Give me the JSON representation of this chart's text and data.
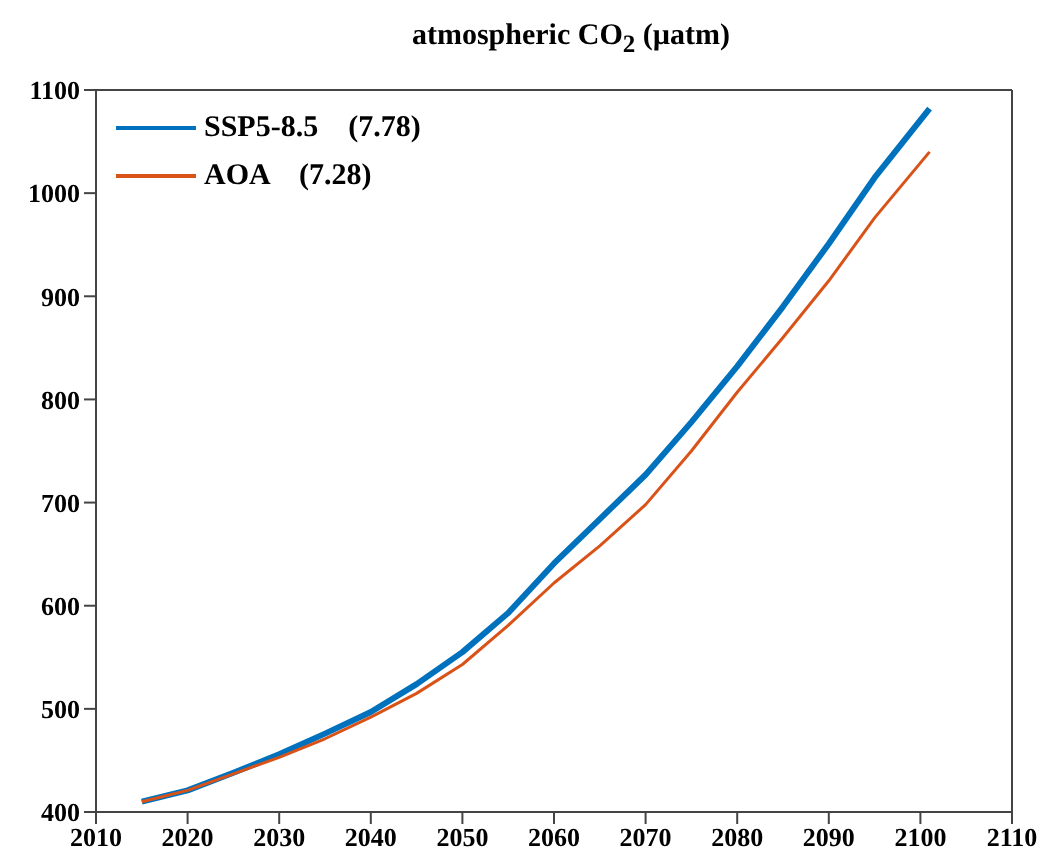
{
  "chart_data": {
    "type": "line",
    "title": "atmospheric CO$_{2}$ (µatm)",
    "x": [
      2015,
      2020,
      2025,
      2030,
      2035,
      2040,
      2045,
      2050,
      2055,
      2060,
      2065,
      2070,
      2075,
      2080,
      2085,
      2090,
      2095,
      2101
    ],
    "series": [
      {
        "name": "SSP5-8.5    (7.78)",
        "color": "#0072bd",
        "values": [
          410,
          421,
          438,
          456,
          476,
          497,
          524,
          555,
          593,
          641,
          684,
          727,
          778,
          832,
          890,
          951,
          1015,
          1082
        ]
      },
      {
        "name": "AOA    (7.28)",
        "color": "#d95319",
        "values": [
          410,
          421,
          437,
          453,
          471,
          492,
          515,
          543,
          581,
          622,
          658,
          698,
          750,
          807,
          860,
          915,
          976,
          1040
        ]
      }
    ],
    "xlim": [
      2010,
      2110
    ],
    "xticks": [
      2010,
      2020,
      2030,
      2040,
      2050,
      2060,
      2070,
      2080,
      2090,
      2100,
      2110
    ],
    "ylim": [
      400,
      1100
    ],
    "yticks": [
      400,
      500,
      600,
      700,
      800,
      900,
      1000,
      1100
    ],
    "grid": false,
    "legend": "top left",
    "marker": "none",
    "line_style": "solid"
  }
}
